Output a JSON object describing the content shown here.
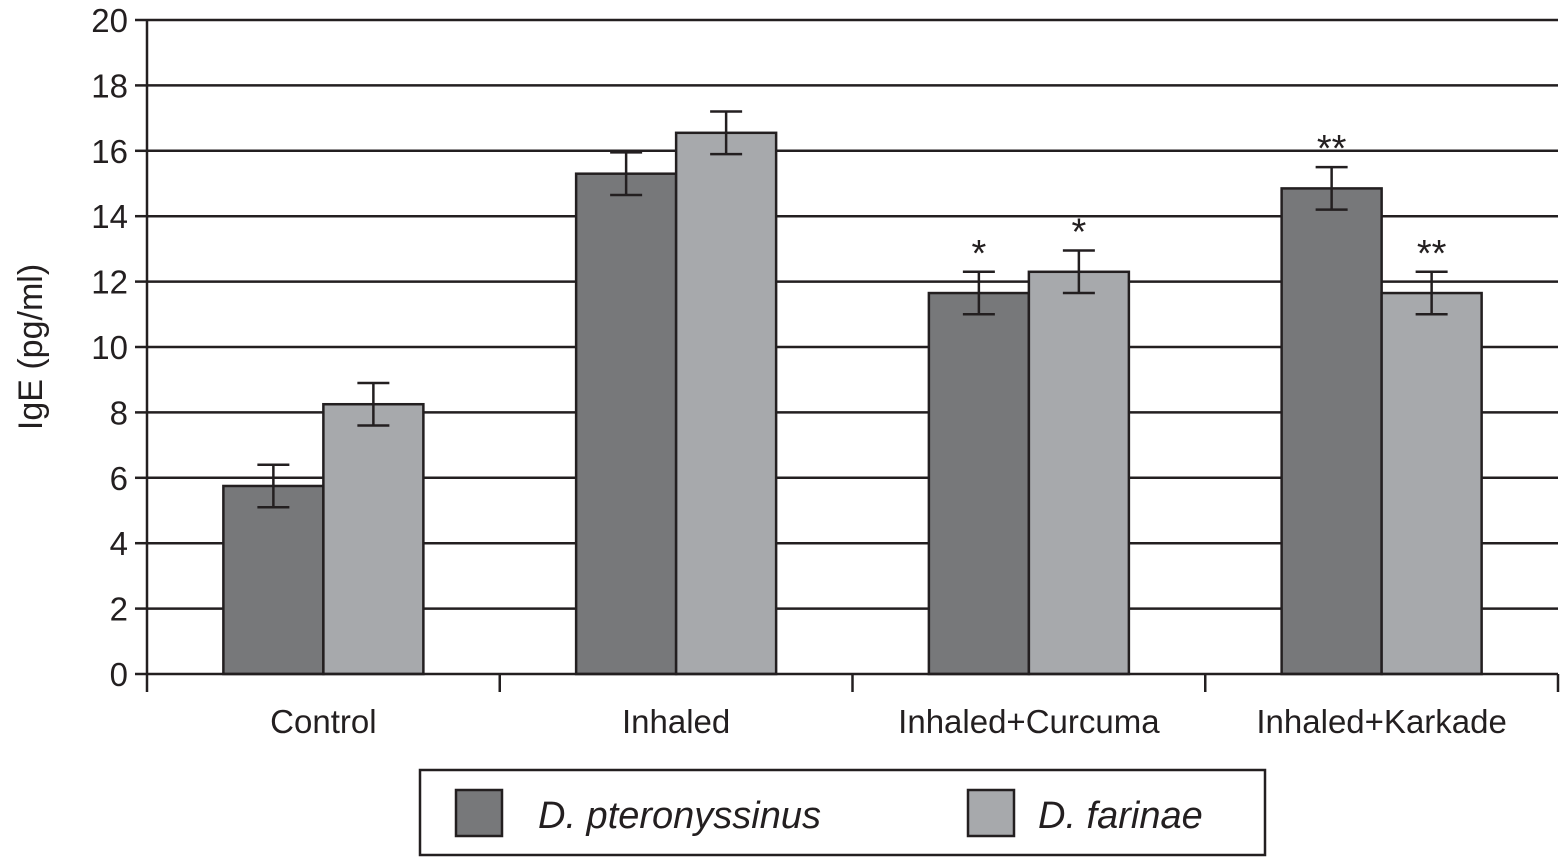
{
  "chart_data": {
    "type": "bar",
    "title": "",
    "xlabel": "",
    "ylabel": "IgE (pg/ml)",
    "ylim": [
      0,
      20
    ],
    "yticks": [
      0,
      2,
      4,
      6,
      8,
      10,
      12,
      14,
      16,
      18,
      20
    ],
    "grid": true,
    "categories": [
      "Control",
      "Inhaled",
      "Inhaled+Curcuma",
      "Inhaled+Karkade"
    ],
    "series": [
      {
        "name": "D. pteronyssinus",
        "color": "#77787a",
        "values": [
          5.75,
          15.3,
          11.65,
          14.85
        ],
        "errors": [
          0.65,
          0.65,
          0.65,
          0.65
        ],
        "annotations": [
          "",
          "",
          "*",
          "**"
        ]
      },
      {
        "name": "D. farinae",
        "color": "#a7a9ac",
        "values": [
          8.25,
          16.55,
          12.3,
          11.65
        ],
        "errors": [
          0.65,
          0.65,
          0.65,
          0.65
        ],
        "annotations": [
          "",
          "",
          "*",
          "**"
        ]
      }
    ],
    "legend_position": "bottom"
  }
}
